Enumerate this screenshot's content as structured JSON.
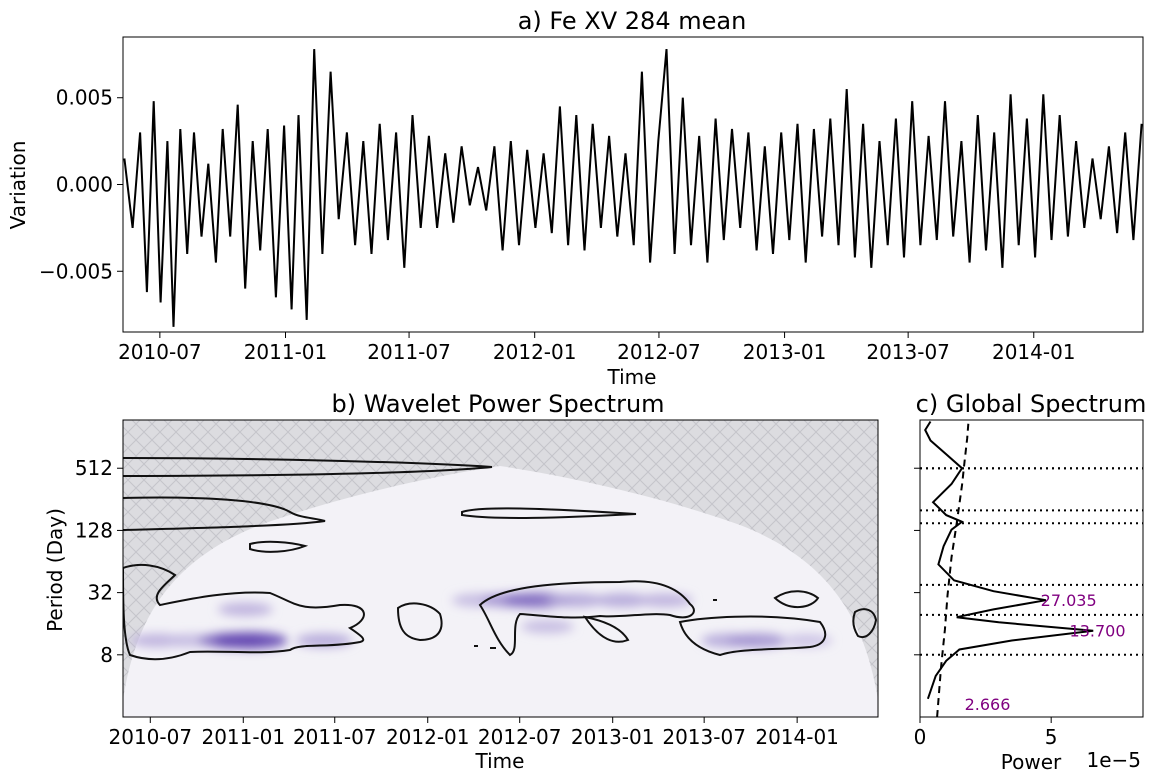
{
  "chart_data": [
    {
      "type": "line",
      "title": "a) Fe XV 284 mean",
      "xlabel": "Time",
      "ylabel": "Variation",
      "xlim": [
        "2010-05-08",
        "2014-06-10"
      ],
      "ylim": [
        -0.0085,
        0.0085
      ],
      "xticks": [
        "2010-07",
        "2011-01",
        "2011-07",
        "2012-01",
        "2012-07",
        "2013-01",
        "2013-07",
        "2014-01"
      ],
      "yticks": [
        0.005,
        0.0,
        -0.005
      ],
      "ytick_labels": [
        "0.005",
        "0.000",
        "−0.005"
      ],
      "series": [
        {
          "color": "#000000",
          "points": [
            [
              "2010-05-10",
              0.0015
            ],
            [
              "2010-05-22",
              -0.0025
            ],
            [
              "2010-06-02",
              0.003
            ],
            [
              "2010-06-12",
              -0.0062
            ],
            [
              "2010-06-22",
              0.0048
            ],
            [
              "2010-07-02",
              -0.0068
            ],
            [
              "2010-07-12",
              0.0025
            ],
            [
              "2010-07-21",
              -0.0082
            ],
            [
              "2010-07-31",
              0.0032
            ],
            [
              "2010-08-10",
              -0.004
            ],
            [
              "2010-08-20",
              0.003
            ],
            [
              "2010-08-31",
              -0.003
            ],
            [
              "2010-09-10",
              0.0012
            ],
            [
              "2010-09-21",
              -0.0045
            ],
            [
              "2010-10-01",
              0.0032
            ],
            [
              "2010-10-12",
              -0.003
            ],
            [
              "2010-10-23",
              0.0046
            ],
            [
              "2010-11-03",
              -0.006
            ],
            [
              "2010-11-14",
              0.0025
            ],
            [
              "2010-11-25",
              -0.0038
            ],
            [
              "2010-12-06",
              0.0032
            ],
            [
              "2010-12-18",
              -0.0065
            ],
            [
              "2010-12-30",
              0.0034
            ],
            [
              "2011-01-10",
              -0.0072
            ],
            [
              "2011-01-20",
              0.004
            ],
            [
              "2011-02-01",
              -0.0078
            ],
            [
              "2011-02-12",
              0.0078
            ],
            [
              "2011-02-24",
              -0.004
            ],
            [
              "2011-03-08",
              0.0065
            ],
            [
              "2011-03-20",
              -0.002
            ],
            [
              "2011-04-01",
              0.003
            ],
            [
              "2011-04-13",
              -0.0035
            ],
            [
              "2011-04-25",
              0.0025
            ],
            [
              "2011-05-07",
              -0.004
            ],
            [
              "2011-05-19",
              0.0035
            ],
            [
              "2011-05-31",
              -0.0032
            ],
            [
              "2011-06-12",
              0.003
            ],
            [
              "2011-06-24",
              -0.0048
            ],
            [
              "2011-07-06",
              0.004
            ],
            [
              "2011-07-18",
              -0.0025
            ],
            [
              "2011-07-30",
              0.0028
            ],
            [
              "2011-08-11",
              -0.0025
            ],
            [
              "2011-08-23",
              0.0018
            ],
            [
              "2011-09-04",
              -0.0022
            ],
            [
              "2011-09-16",
              0.0022
            ],
            [
              "2011-09-28",
              -0.0012
            ],
            [
              "2011-10-10",
              0.001
            ],
            [
              "2011-10-22",
              -0.0015
            ],
            [
              "2011-11-03",
              0.0022
            ],
            [
              "2011-11-15",
              -0.0038
            ],
            [
              "2011-11-27",
              0.0025
            ],
            [
              "2011-12-09",
              -0.0035
            ],
            [
              "2011-12-21",
              0.002
            ],
            [
              "2012-01-02",
              -0.0025
            ],
            [
              "2012-01-14",
              0.0018
            ],
            [
              "2012-01-26",
              -0.0028
            ],
            [
              "2012-02-07",
              0.0045
            ],
            [
              "2012-02-19",
              -0.0035
            ],
            [
              "2012-03-02",
              0.004
            ],
            [
              "2012-03-14",
              -0.0038
            ],
            [
              "2012-03-26",
              0.0035
            ],
            [
              "2012-04-07",
              -0.0025
            ],
            [
              "2012-04-19",
              0.0028
            ],
            [
              "2012-05-01",
              -0.003
            ],
            [
              "2012-05-13",
              0.0018
            ],
            [
              "2012-05-25",
              -0.0035
            ],
            [
              "2012-06-06",
              0.0065
            ],
            [
              "2012-06-18",
              -0.0045
            ],
            [
              "2012-06-30",
              0.0025
            ],
            [
              "2012-07-12",
              0.0078
            ],
            [
              "2012-07-24",
              -0.004
            ],
            [
              "2012-08-05",
              0.005
            ],
            [
              "2012-08-17",
              -0.0035
            ],
            [
              "2012-08-29",
              0.0028
            ],
            [
              "2012-09-10",
              -0.0045
            ],
            [
              "2012-09-22",
              0.0038
            ],
            [
              "2012-10-04",
              -0.0032
            ],
            [
              "2012-10-16",
              0.0032
            ],
            [
              "2012-10-28",
              -0.0025
            ],
            [
              "2012-11-09",
              0.003
            ],
            [
              "2012-11-21",
              -0.0038
            ],
            [
              "2012-12-03",
              0.0022
            ],
            [
              "2012-12-15",
              -0.004
            ],
            [
              "2012-12-27",
              0.003
            ],
            [
              "2013-01-08",
              -0.0032
            ],
            [
              "2013-01-20",
              0.0035
            ],
            [
              "2013-02-01",
              -0.0045
            ],
            [
              "2013-02-13",
              0.0032
            ],
            [
              "2013-02-25",
              -0.003
            ],
            [
              "2013-03-09",
              0.0038
            ],
            [
              "2013-03-21",
              -0.0035
            ],
            [
              "2013-04-02",
              0.0055
            ],
            [
              "2013-04-14",
              -0.0042
            ],
            [
              "2013-04-26",
              0.0035
            ],
            [
              "2013-05-08",
              -0.0048
            ],
            [
              "2013-05-20",
              0.0025
            ],
            [
              "2013-06-01",
              -0.0035
            ],
            [
              "2013-06-13",
              0.0038
            ],
            [
              "2013-06-25",
              -0.0042
            ],
            [
              "2013-07-07",
              0.0048
            ],
            [
              "2013-07-19",
              -0.0035
            ],
            [
              "2013-07-31",
              0.0028
            ],
            [
              "2013-08-12",
              -0.0032
            ],
            [
              "2013-08-24",
              0.0048
            ],
            [
              "2013-09-05",
              -0.003
            ],
            [
              "2013-09-17",
              0.0025
            ],
            [
              "2013-09-29",
              -0.0045
            ],
            [
              "2013-10-11",
              0.004
            ],
            [
              "2013-10-23",
              -0.0038
            ],
            [
              "2013-11-04",
              0.003
            ],
            [
              "2013-11-16",
              -0.0048
            ],
            [
              "2013-11-28",
              0.0052
            ],
            [
              "2013-12-10",
              -0.0035
            ],
            [
              "2013-12-22",
              0.0038
            ],
            [
              "2014-01-03",
              -0.0042
            ],
            [
              "2014-01-15",
              0.0052
            ],
            [
              "2014-01-27",
              -0.0032
            ],
            [
              "2014-02-08",
              0.004
            ],
            [
              "2014-02-20",
              -0.003
            ],
            [
              "2014-03-04",
              0.0025
            ],
            [
              "2014-03-16",
              -0.0025
            ],
            [
              "2014-03-28",
              0.0015
            ],
            [
              "2014-04-09",
              -0.002
            ],
            [
              "2014-04-21",
              0.0022
            ],
            [
              "2014-05-03",
              -0.0028
            ],
            [
              "2014-05-15",
              0.003
            ],
            [
              "2014-05-27",
              -0.0032
            ],
            [
              "2014-06-08",
              0.0035
            ]
          ]
        }
      ]
    },
    {
      "type": "heatmap",
      "title": "b) Wavelet Power Spectrum",
      "xlabel": "Time",
      "ylabel": "Period (Day)",
      "y_scale": "log2",
      "xlim": [
        "2010-05-08",
        "2014-06-10"
      ],
      "ylim": [
        2,
        1500
      ],
      "xticks": [
        "2010-07",
        "2011-01",
        "2011-07",
        "2012-01",
        "2012-07",
        "2013-01",
        "2013-07",
        "2014-01"
      ],
      "yticks": [
        512,
        128,
        32,
        8
      ],
      "colormap": "Purples",
      "cone_of_influence_hatched": true,
      "power_hotspots": [
        {
          "t": "2010-07-15",
          "period": 11,
          "level": 0.3
        },
        {
          "t": "2010-09-20",
          "period": 11,
          "level": 0.25
        },
        {
          "t": "2010-12-10",
          "period": 11,
          "level": 0.65
        },
        {
          "t": "2011-01-15",
          "period": 11,
          "level": 0.85
        },
        {
          "t": "2011-01-05",
          "period": 22,
          "level": 0.3
        },
        {
          "t": "2011-06-10",
          "period": 11,
          "level": 0.35
        },
        {
          "t": "2012-04-10",
          "period": 27,
          "level": 0.25
        },
        {
          "t": "2012-06-15",
          "period": 27,
          "level": 0.45
        },
        {
          "t": "2012-08-05",
          "period": 27,
          "level": 0.65
        },
        {
          "t": "2012-08-25",
          "period": 15,
          "level": 0.25
        },
        {
          "t": "2012-10-20",
          "period": 27,
          "level": 0.35
        },
        {
          "t": "2013-01-20",
          "period": 27,
          "level": 0.35
        },
        {
          "t": "2013-04-15",
          "period": 27,
          "level": 0.3
        },
        {
          "t": "2013-08-20",
          "period": 11,
          "level": 0.35
        },
        {
          "t": "2013-10-15",
          "period": 11,
          "level": 0.45
        },
        {
          "t": "2014-01-20",
          "period": 11,
          "level": 0.2
        }
      ],
      "significance_contour": "black lines"
    },
    {
      "type": "line",
      "title": "c) Global Spectrum",
      "xlabel": "Power",
      "x_offset_label": "1e−5",
      "xlim": [
        0,
        8.5
      ],
      "xticks": [
        0,
        5
      ],
      "y_scale": "log2",
      "ylim": [
        2,
        1500
      ],
      "series": [
        {
          "name": "global",
          "style": "solid",
          "points": [
            [
              0.3,
              3.0
            ],
            [
              0.6,
              5.0
            ],
            [
              1.0,
              7.0
            ],
            [
              1.5,
              9.0
            ],
            [
              3.5,
              11.0
            ],
            [
              6.6,
              13.7
            ],
            [
              3.0,
              16.5
            ],
            [
              1.4,
              18.5
            ],
            [
              2.8,
              22.0
            ],
            [
              4.8,
              27.0
            ],
            [
              2.8,
              33.0
            ],
            [
              1.3,
              42.0
            ],
            [
              0.7,
              60.0
            ],
            [
              0.9,
              90.0
            ],
            [
              1.2,
              130.0
            ],
            [
              1.6,
              155.0
            ],
            [
              1.0,
              180.0
            ],
            [
              0.5,
              240.0
            ],
            [
              1.2,
              360.0
            ],
            [
              1.6,
              512.0
            ],
            [
              1.0,
              700.0
            ],
            [
              0.4,
              950.0
            ],
            [
              0.2,
              1200.0
            ],
            [
              0.4,
              1450.0
            ]
          ]
        },
        {
          "name": "significance",
          "style": "dashed",
          "points": [
            [
              0.65,
              2.0
            ],
            [
              0.8,
              6.0
            ],
            [
              0.95,
              14.0
            ],
            [
              1.05,
              30.0
            ],
            [
              1.2,
              70.0
            ],
            [
              1.4,
              150.0
            ],
            [
              1.6,
              350.0
            ],
            [
              1.7,
              600.0
            ],
            [
              1.8,
              1000.0
            ],
            [
              1.85,
              1450.0
            ]
          ]
        }
      ],
      "hlines_dotted": [
        512,
        510,
        200,
        150,
        38,
        19.5,
        8.0
      ],
      "annotations": [
        {
          "text": "27.035",
          "x": 4.6,
          "y": 27.0,
          "color": "#800080"
        },
        {
          "text": "13.700",
          "x": 5.7,
          "y": 13.7,
          "color": "#800080"
        },
        {
          "text": "2.666",
          "x": 1.7,
          "y": 2.666,
          "color": "#800080"
        }
      ]
    }
  ]
}
